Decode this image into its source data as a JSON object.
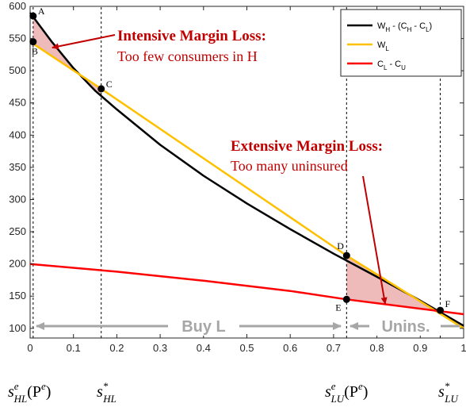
{
  "chart_data": {
    "type": "line",
    "xlim": [
      0,
      1
    ],
    "ylim": [
      85,
      600
    ],
    "xticks": [
      "0",
      "0.1",
      "0.2",
      "0.3",
      "0.4",
      "0.5",
      "0.6",
      "0.7",
      "0.8",
      "0.9",
      "1"
    ],
    "yticks": [
      "100",
      "150",
      "200",
      "250",
      "300",
      "350",
      "400",
      "450",
      "500",
      "550",
      "600"
    ],
    "series": [
      {
        "name": "W_H - (C_H - C_L)",
        "color": "#000000",
        "x": [
          0.0,
          0.05,
          0.1,
          0.15,
          0.2,
          0.3,
          0.4,
          0.5,
          0.6,
          0.7,
          0.8,
          0.9,
          1.0
        ],
        "y": [
          590,
          545,
          504,
          469,
          440,
          385,
          337,
          294,
          254,
          216,
          180,
          143,
          104
        ]
      },
      {
        "name": "W_L",
        "color": "#ffc000",
        "x": [
          0.0,
          0.164,
          0.73,
          1.0
        ],
        "y": [
          545,
          472,
          213,
          100
        ]
      },
      {
        "name": "C_L - C_U",
        "color": "#ff0000",
        "x": [
          0.0,
          0.2,
          0.4,
          0.6,
          0.73,
          1.0
        ],
        "y": [
          200,
          188,
          174,
          158,
          145,
          122
        ]
      }
    ],
    "points": [
      {
        "label": "A",
        "x": 0.007,
        "y": 585
      },
      {
        "label": "B",
        "x": 0.007,
        "y": 545
      },
      {
        "label": "C",
        "x": 0.164,
        "y": 472
      },
      {
        "label": "D",
        "x": 0.73,
        "y": 213
      },
      {
        "label": "E",
        "x": 0.73,
        "y": 145
      },
      {
        "label": "F",
        "x": 0.946,
        "y": 128
      }
    ],
    "vlines": [
      0.007,
      0.164,
      0.73,
      0.946
    ],
    "annotations": {
      "intensive_title": "Intensive Margin Loss:",
      "intensive_sub": "Too few consumers in H",
      "extensive_title": "Extensive Margin Loss:",
      "extensive_sub": "Too many uninsured"
    },
    "regions": {
      "buy_l": "Buy L",
      "unins": "Unins."
    },
    "bottom_labels": [
      {
        "base": "s",
        "sup": "e",
        "sub": "HL",
        "suffix": "(P",
        "suffix_sup": "e",
        "suffix_end": ")"
      },
      {
        "base": "s",
        "sup": "*",
        "sub": "HL"
      },
      {
        "base": "s",
        "sup": "e",
        "sub": "LU",
        "suffix": "(P",
        "suffix_sup": "e",
        "suffix_end": ")"
      },
      {
        "base": "s",
        "sup": "*",
        "sub": "LU"
      }
    ],
    "legend_entries": [
      {
        "main": "W",
        "sub": "H",
        "rest": " - (C",
        "sub2": "H",
        "rest2": " - C",
        "sub3": "L",
        "end": ")"
      },
      {
        "main": "W",
        "sub": "L"
      },
      {
        "main": "C",
        "sub": "L",
        "rest": " - C",
        "sub2": "U"
      }
    ],
    "legend_placement": "top-right",
    "grid": false
  }
}
